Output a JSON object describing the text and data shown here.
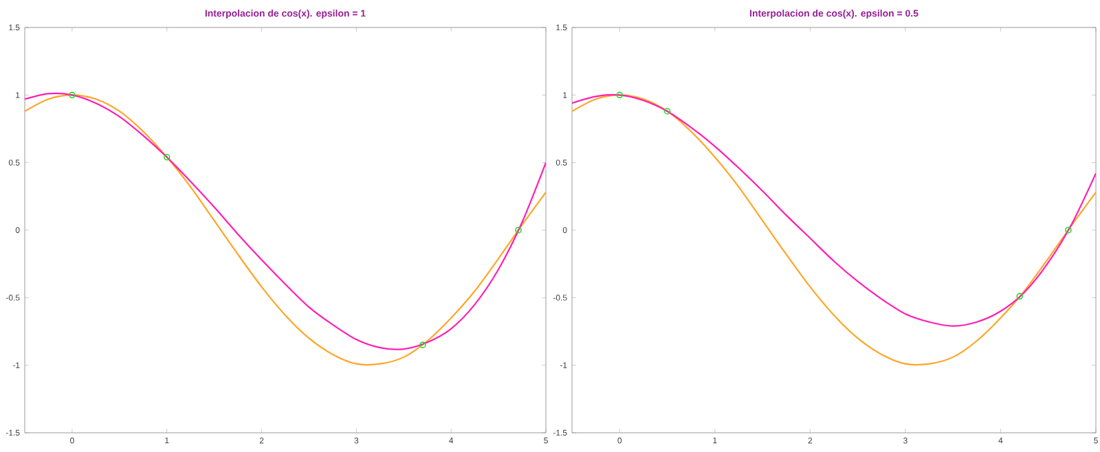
{
  "chart_data": [
    {
      "type": "line",
      "title": "Interpolacion de cos(x). epsilon = 1",
      "xlim": [
        -0.5,
        5
      ],
      "ylim": [
        -1.5,
        1.5
      ],
      "xticks": [
        0,
        1,
        2,
        3,
        4,
        5
      ],
      "yticks": [
        -1.5,
        -1,
        -0.5,
        0,
        0.5,
        1,
        1.5
      ],
      "grid": false,
      "series": [
        {
          "type": "line",
          "color": "#ffa526",
          "line_style": "solid",
          "marker": "none",
          "x": [
            -0.5,
            -0.25,
            0,
            0.25,
            0.5,
            0.75,
            1,
            1.25,
            1.5,
            1.75,
            2,
            2.25,
            2.5,
            2.75,
            3,
            3.25,
            3.5,
            3.75,
            4,
            4.25,
            4.5,
            4.75,
            5
          ],
          "values": [
            0.88,
            0.97,
            1,
            0.97,
            0.88,
            0.73,
            0.54,
            0.32,
            0.07,
            -0.18,
            -0.42,
            -0.63,
            -0.8,
            -0.92,
            -0.99,
            -0.99,
            -0.94,
            -0.82,
            -0.65,
            -0.45,
            -0.21,
            0.04,
            0.28
          ]
        },
        {
          "type": "line",
          "color": "#ff1eb4",
          "line_style": "solid",
          "marker": "none",
          "x": [
            -0.5,
            -0.25,
            0,
            0.25,
            0.5,
            0.75,
            1,
            1.25,
            1.5,
            1.75,
            2,
            2.25,
            2.5,
            2.75,
            3,
            3.25,
            3.5,
            3.75,
            4,
            4.25,
            4.5,
            4.75,
            5
          ],
          "values": [
            0.97,
            1.01,
            1,
            0.94,
            0.84,
            0.7,
            0.54,
            0.36,
            0.17,
            -0.03,
            -0.22,
            -0.4,
            -0.57,
            -0.7,
            -0.81,
            -0.87,
            -0.88,
            -0.83,
            -0.73,
            -0.55,
            -0.29,
            0.06,
            0.5
          ]
        },
        {
          "type": "scatter",
          "color": "#22dd22",
          "marker": "circle",
          "x": [
            0,
            1,
            3.7,
            4.71
          ],
          "values": [
            1,
            0.54,
            -0.85,
            0
          ]
        }
      ]
    },
    {
      "type": "line",
      "title": "Interpolacion de cos(x). epsilon = 0.5",
      "xlim": [
        -0.5,
        5
      ],
      "ylim": [
        -1.5,
        1.5
      ],
      "xticks": [
        0,
        1,
        2,
        3,
        4,
        5
      ],
      "yticks": [
        -1.5,
        -1,
        -0.5,
        0,
        0.5,
        1,
        1.5
      ],
      "grid": false,
      "series": [
        {
          "type": "line",
          "color": "#ffa526",
          "line_style": "solid",
          "marker": "none",
          "x": [
            -0.5,
            -0.25,
            0,
            0.25,
            0.5,
            0.75,
            1,
            1.25,
            1.5,
            1.75,
            2,
            2.25,
            2.5,
            2.75,
            3,
            3.25,
            3.5,
            3.75,
            4,
            4.25,
            4.5,
            4.75,
            5
          ],
          "values": [
            0.88,
            0.97,
            1,
            0.97,
            0.88,
            0.73,
            0.54,
            0.32,
            0.07,
            -0.18,
            -0.42,
            -0.63,
            -0.8,
            -0.92,
            -0.99,
            -0.99,
            -0.94,
            -0.82,
            -0.65,
            -0.45,
            -0.21,
            0.04,
            0.28
          ]
        },
        {
          "type": "line",
          "color": "#ff1eb4",
          "line_style": "solid",
          "marker": "none",
          "x": [
            -0.5,
            -0.25,
            0,
            0.25,
            0.5,
            0.75,
            1,
            1.25,
            1.5,
            1.75,
            2,
            2.25,
            2.5,
            2.75,
            3,
            3.25,
            3.5,
            3.75,
            4,
            4.25,
            4.5,
            4.75,
            5
          ],
          "values": [
            0.94,
            0.99,
            1,
            0.96,
            0.88,
            0.76,
            0.62,
            0.46,
            0.29,
            0.11,
            -0.06,
            -0.23,
            -0.38,
            -0.51,
            -0.62,
            -0.68,
            -0.71,
            -0.68,
            -0.6,
            -0.46,
            -0.24,
            0.05,
            0.42
          ]
        },
        {
          "type": "scatter",
          "color": "#22dd22",
          "marker": "circle",
          "x": [
            0,
            0.5,
            4.2,
            4.71
          ],
          "values": [
            1,
            0.88,
            -0.49,
            0
          ]
        }
      ]
    }
  ]
}
